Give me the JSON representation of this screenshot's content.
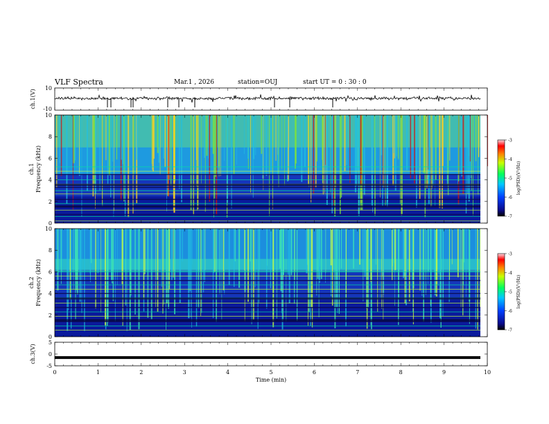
{
  "header": {
    "title": "VLF Spectra",
    "date": "Mar.1  , 2026",
    "station": "station=OUJ",
    "start": "start  UT =   0 : 30 : 0"
  },
  "chart_data": [
    {
      "type": "line",
      "name": "ch1-waveform",
      "ylabel": "ch.1(V)",
      "ylim": [
        -10,
        10
      ],
      "yticks": [
        "10",
        "-10"
      ],
      "xlim": [
        0,
        10
      ]
    },
    {
      "type": "heatmap",
      "name": "ch1-spectrogram",
      "ylabel": "ch.1\nFrequency (kHz)",
      "ylabel_line1": "ch.1",
      "ylabel_line2": "Frequency (kHz)",
      "ylim": [
        0,
        10
      ],
      "yticks": [
        "0",
        "2",
        "4",
        "6",
        "8",
        "10"
      ],
      "colorbar": {
        "label": "log(PSD)(V²/Hz)",
        "ticks": [
          "-3",
          "-4",
          "-5",
          "-6",
          "-7"
        ],
        "range": [
          -7,
          -3
        ]
      }
    },
    {
      "type": "heatmap",
      "name": "ch2-spectrogram",
      "ylabel": "ch.2\nFrequency (kHz)",
      "ylabel_line1": "ch.2",
      "ylabel_line2": "Frequency (kHz)",
      "ylim": [
        0,
        10
      ],
      "yticks": [
        "0",
        "2",
        "4",
        "6",
        "8",
        "10"
      ],
      "colorbar": {
        "label": "log(PSD)(V²/Hz)",
        "ticks": [
          "-3",
          "-4",
          "-5",
          "-6",
          "-7"
        ],
        "range": [
          -7,
          -3
        ]
      }
    },
    {
      "type": "line",
      "name": "ch3-waveform",
      "ylabel": "ch.3(V)",
      "ylim": [
        -5,
        5
      ],
      "yticks": [
        "5",
        "0",
        "-5"
      ],
      "values_constant": -1.5
    }
  ],
  "xaxis": {
    "label": "Time (min)",
    "ticks": [
      "0",
      "1",
      "2",
      "3",
      "4",
      "5",
      "6",
      "7",
      "8",
      "9",
      "10"
    ],
    "range": [
      0,
      10
    ]
  },
  "colors": {
    "background_low": "#0a1a9c",
    "mid": "#2b8cf0",
    "high": "#ffd21f",
    "peak": "#d01010",
    "line": "#000000"
  }
}
